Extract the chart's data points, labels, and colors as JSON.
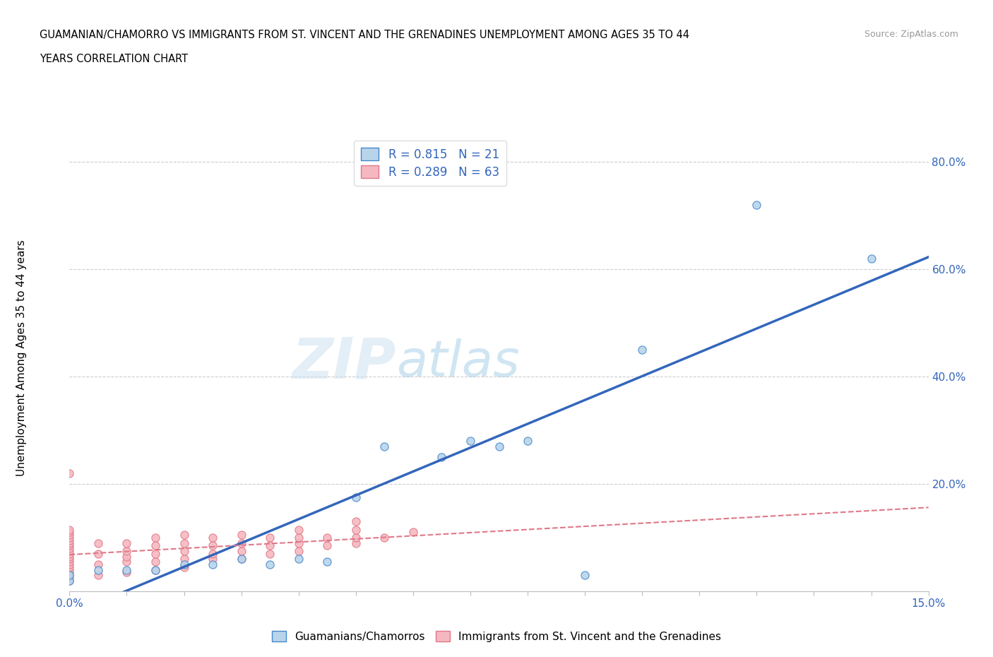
{
  "title_line1": "GUAMANIAN/CHAMORRO VS IMMIGRANTS FROM ST. VINCENT AND THE GRENADINES UNEMPLOYMENT AMONG AGES 35 TO 44",
  "title_line2": "YEARS CORRELATION CHART",
  "source": "Source: ZipAtlas.com",
  "ylabel": "Unemployment Among Ages 35 to 44 years",
  "xlim": [
    0.0,
    0.15
  ],
  "ylim": [
    0.0,
    0.85
  ],
  "blue_R": 0.815,
  "blue_N": 21,
  "pink_R": 0.289,
  "pink_N": 63,
  "blue_scatter_color": "#b8d4ea",
  "blue_edge_color": "#4488cc",
  "pink_scatter_color": "#f5b8c0",
  "pink_edge_color": "#e07888",
  "blue_line_color": "#3366bb",
  "pink_line_color": "#dd6677",
  "label_color": "#3366bb",
  "blue_scatter_x": [
    0.0,
    0.0,
    0.005,
    0.01,
    0.015,
    0.02,
    0.025,
    0.03,
    0.035,
    0.04,
    0.045,
    0.05,
    0.055,
    0.065,
    0.07,
    0.075,
    0.08,
    0.09,
    0.1,
    0.12,
    0.14
  ],
  "blue_scatter_y": [
    0.02,
    0.03,
    0.04,
    0.04,
    0.04,
    0.05,
    0.05,
    0.06,
    0.05,
    0.06,
    0.055,
    0.175,
    0.27,
    0.25,
    0.28,
    0.27,
    0.28,
    0.03,
    0.45,
    0.72,
    0.62
  ],
  "pink_scatter_x": [
    0.0,
    0.0,
    0.0,
    0.0,
    0.0,
    0.0,
    0.0,
    0.0,
    0.0,
    0.0,
    0.0,
    0.0,
    0.0,
    0.0,
    0.0,
    0.0,
    0.0,
    0.0,
    0.0,
    0.0,
    0.0,
    0.005,
    0.005,
    0.005,
    0.005,
    0.01,
    0.01,
    0.01,
    0.01,
    0.01,
    0.015,
    0.015,
    0.015,
    0.015,
    0.015,
    0.02,
    0.02,
    0.02,
    0.02,
    0.02,
    0.025,
    0.025,
    0.025,
    0.025,
    0.03,
    0.03,
    0.03,
    0.03,
    0.035,
    0.035,
    0.035,
    0.04,
    0.04,
    0.04,
    0.04,
    0.045,
    0.045,
    0.05,
    0.05,
    0.05,
    0.05,
    0.055,
    0.06
  ],
  "pink_scatter_y": [
    0.02,
    0.025,
    0.03,
    0.035,
    0.04,
    0.045,
    0.05,
    0.055,
    0.06,
    0.065,
    0.07,
    0.075,
    0.08,
    0.085,
    0.09,
    0.095,
    0.1,
    0.105,
    0.11,
    0.115,
    0.22,
    0.03,
    0.05,
    0.07,
    0.09,
    0.035,
    0.055,
    0.065,
    0.075,
    0.09,
    0.04,
    0.055,
    0.07,
    0.085,
    0.1,
    0.045,
    0.06,
    0.075,
    0.09,
    0.105,
    0.06,
    0.07,
    0.085,
    0.1,
    0.06,
    0.075,
    0.09,
    0.105,
    0.07,
    0.085,
    0.1,
    0.075,
    0.09,
    0.1,
    0.115,
    0.085,
    0.1,
    0.09,
    0.1,
    0.115,
    0.13,
    0.1,
    0.11
  ]
}
